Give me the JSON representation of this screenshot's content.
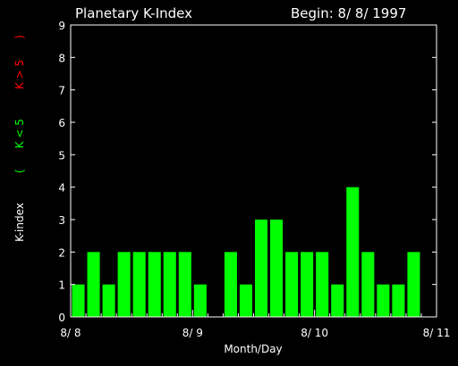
{
  "chart_data": {
    "type": "bar",
    "title": "Planetary K-Index",
    "begin_label": "Begin: 8/ 8/ 1997",
    "xlabel": "Month/Day",
    "ylabel": {
      "prefix": "K-index",
      "open": "(",
      "green_part": "K < 5",
      "red_part": "K > 5",
      "close": ")"
    },
    "ylim": [
      0,
      9
    ],
    "yticks": [
      "0",
      "1",
      "2",
      "3",
      "4",
      "5",
      "6",
      "7",
      "8",
      "9"
    ],
    "xticks": [
      {
        "label": "8/ 8",
        "slot": 0
      },
      {
        "label": "8/ 9",
        "slot": 8
      },
      {
        "label": "8/ 10",
        "slot": 16
      },
      {
        "label": "8/ 11",
        "slot": 24
      }
    ],
    "slots_total": 24,
    "values": [
      1,
      2,
      1,
      2,
      2,
      2,
      2,
      2,
      1,
      null,
      2,
      1,
      3,
      3,
      2,
      2,
      2,
      1,
      4,
      2,
      1,
      1,
      2,
      null
    ],
    "colors": {
      "bar_low": "#00ff00",
      "bar_high": "#ff0000",
      "axis": "#ffffff",
      "background": "#000000",
      "label_green": "#00ff00",
      "label_red": "#ff0000"
    }
  }
}
